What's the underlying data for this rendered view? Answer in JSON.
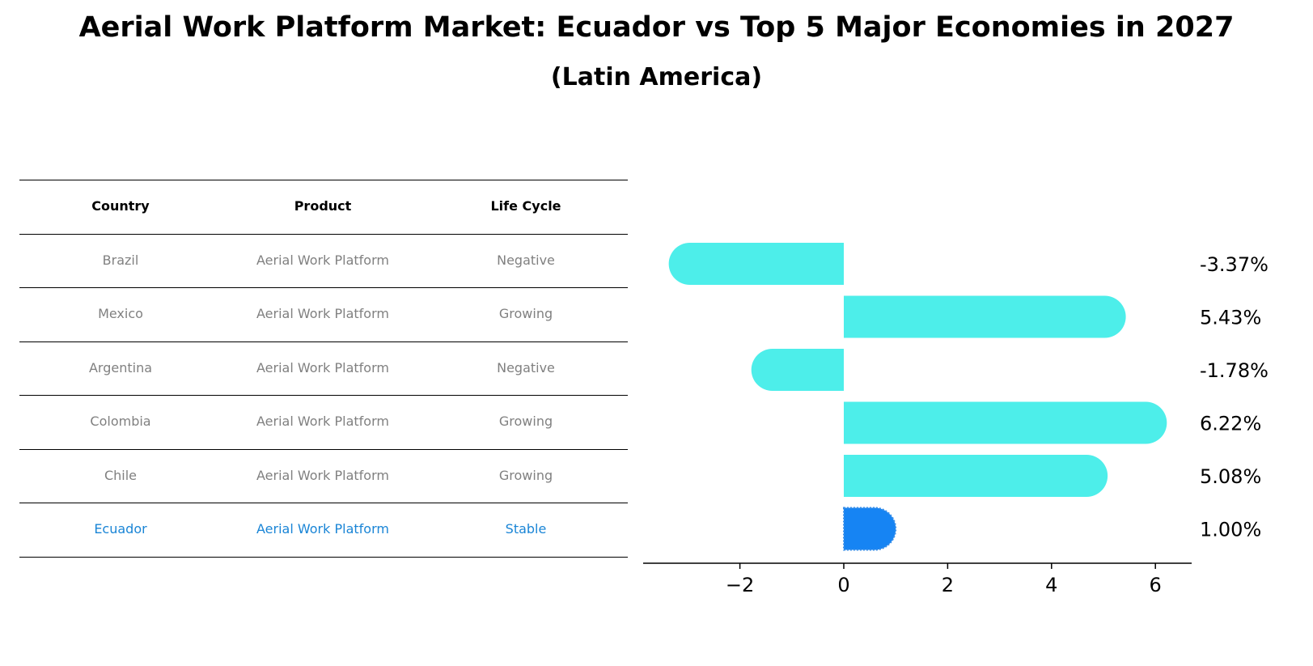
{
  "title": "Aerial Work Platform Market: Ecuador vs Top 5 Major Economies in 2027",
  "subtitle": "(Latin America)",
  "colors": {
    "bar": "#4deeea",
    "highlight": "#1684f3",
    "muted_text": "#808080",
    "highlight_text": "#1a85d6"
  },
  "table": {
    "headers": [
      "Country",
      "Product",
      "Life Cycle"
    ],
    "rows": [
      [
        "Brazil",
        "Aerial Work Platform",
        "Negative"
      ],
      [
        "Mexico",
        "Aerial Work Platform",
        "Growing"
      ],
      [
        "Argentina",
        "Aerial Work Platform",
        "Negative"
      ],
      [
        "Colombia",
        "Aerial Work Platform",
        "Growing"
      ],
      [
        "Chile",
        "Aerial Work Platform",
        "Growing"
      ],
      [
        "Ecuador",
        "Aerial Work Platform",
        "Stable"
      ]
    ],
    "highlight_row": 5
  },
  "chart_data": {
    "type": "bar",
    "orientation": "horizontal",
    "categories": [
      "Brazil",
      "Mexico",
      "Argentina",
      "Colombia",
      "Chile",
      "Ecuador"
    ],
    "values": [
      -3.37,
      5.43,
      -1.78,
      6.22,
      5.08,
      1.0
    ],
    "labels": [
      "-3.37%",
      "5.43%",
      "-1.78%",
      "6.22%",
      "5.08%",
      "1.00%"
    ],
    "highlight_index": 5,
    "xlim": [
      -3.85,
      6.7
    ],
    "xticks": [
      -2,
      0,
      2,
      4,
      6
    ],
    "xtick_labels": [
      "−2",
      "0",
      "2",
      "4",
      "6"
    ],
    "grid": false
  }
}
